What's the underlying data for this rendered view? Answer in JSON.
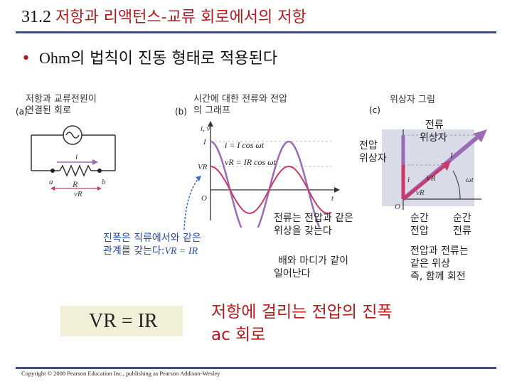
{
  "title": {
    "number": "31.2",
    "text": "저항과 리액턴스-교류 회로에서의 저항"
  },
  "bullet": {
    "text_en": "Ohm",
    "text_kr": "의 법칙이 진동 형태로 적용된다"
  },
  "panels": {
    "a": {
      "tag": "(a)",
      "caption_line1": "저항과 교류전원이",
      "caption_line2": "연결된 회로",
      "labels": {
        "i": "i",
        "a": "a",
        "b": "b",
        "R": "R",
        "vR": "vR"
      }
    },
    "b": {
      "tag": "(b)",
      "caption_line1": "시간에 대한 전류와 전압",
      "caption_line2": "의 그래프",
      "eq_i": "i = I cos ωt",
      "eq_v": "vR = IR cos ωt",
      "lbl_I": "I",
      "lbl_VR": "VR",
      "axis_iv": "i, v",
      "axis_o": "O",
      "axis_t": "t"
    },
    "c": {
      "tag": "(c)",
      "caption": "위상자 그림",
      "lbl_I": "I",
      "lbl_VR": "VR",
      "lbl_wt": "ωt",
      "lbl_i": "i",
      "lbl_vR": "vR",
      "lbl_o": "O"
    }
  },
  "annotations": {
    "voltage_phasor": [
      "전압",
      "위상자"
    ],
    "current_phasor": [
      "전류",
      "위상자"
    ],
    "amplitude": [
      "진폭은 직류에서와 같은",
      "관계를 갖는다:",
      "VR = IR"
    ],
    "same_phase": [
      "전류는 전압과 같은",
      "위상을 갖는다"
    ],
    "peaks_together": [
      "배와 마디가 같이",
      "일어난다"
    ],
    "inst_voltage": [
      "순간",
      "전압"
    ],
    "inst_current": [
      "순간",
      "전류"
    ],
    "rotate_together": [
      "전압과 전류는",
      "같은 위상",
      "즉, 함께 회전"
    ]
  },
  "equation": "VR = IR",
  "headline": [
    "저항에 걸리는 전압의 진폭",
    "ac 회로"
  ],
  "copyright": "Copyright © 2008 Pearson Education Inc., publishing as Pearson Addison-Wesley",
  "colors": {
    "title_red": "#b5191b",
    "rule_blue": "#3e4d7a",
    "current_purple": "#9b6bb5",
    "voltage_pink": "#c93a6a",
    "annotation_blue": "#2a4f9c"
  }
}
